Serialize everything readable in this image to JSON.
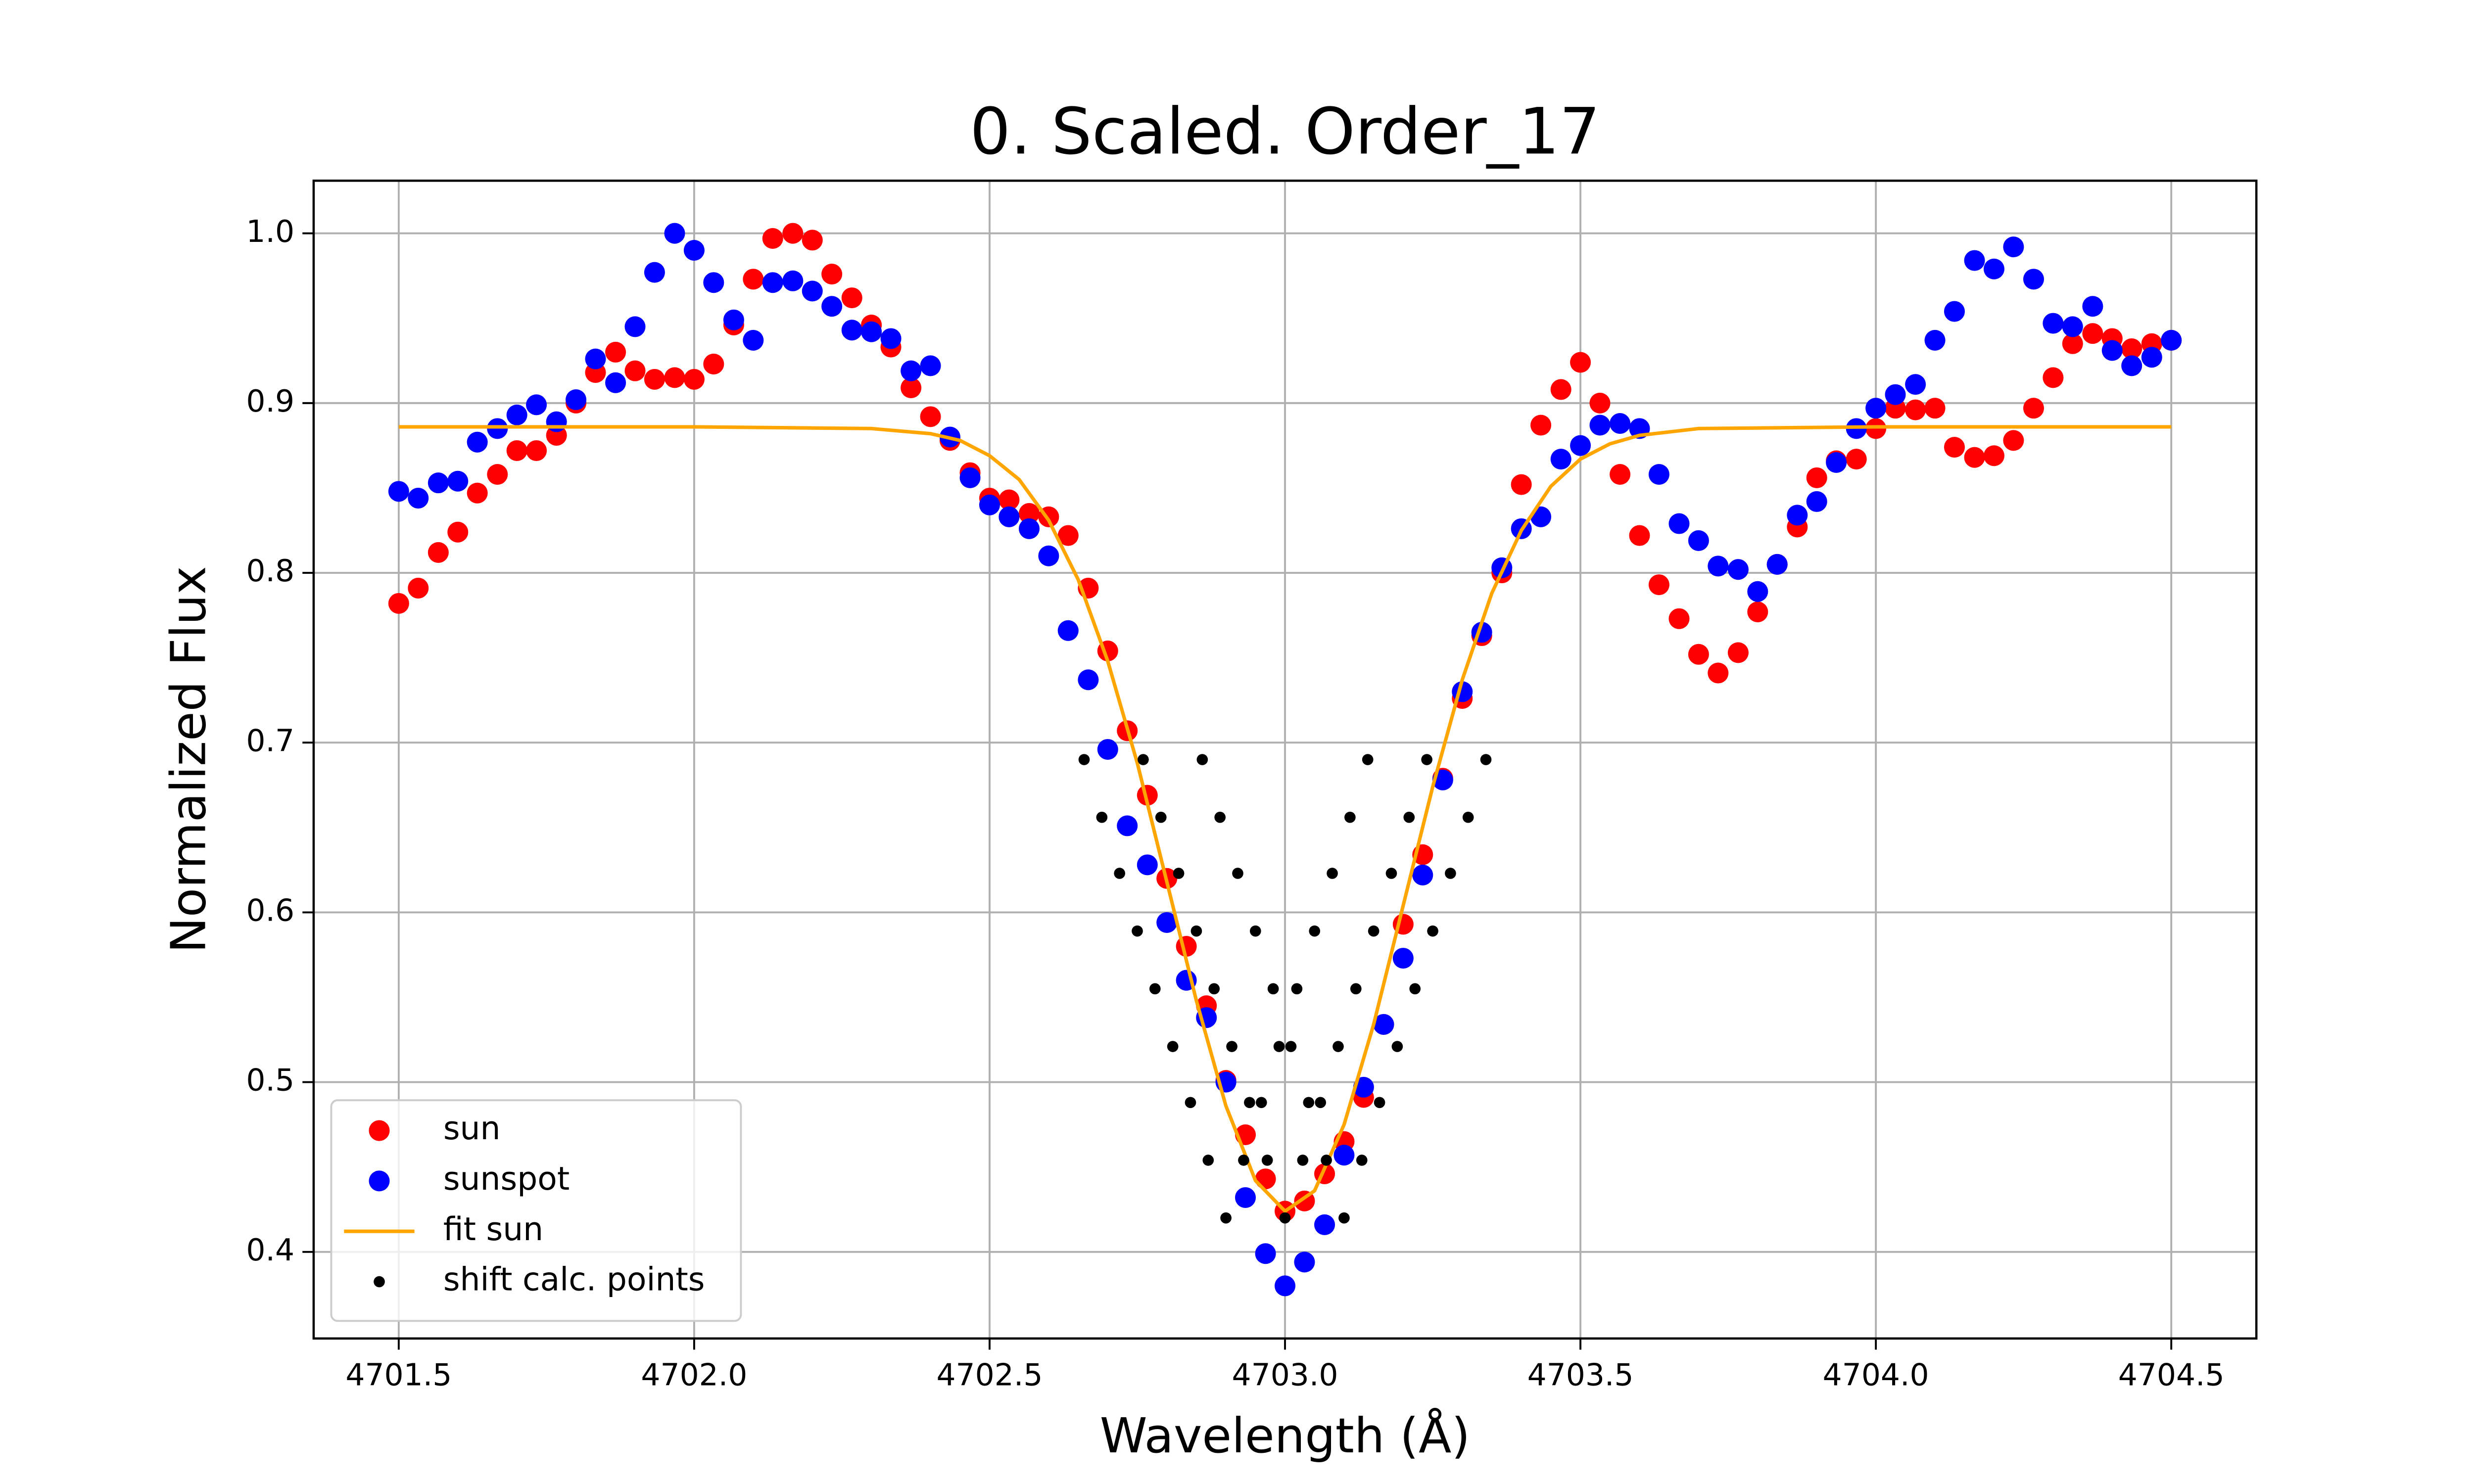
{
  "chart_data": {
    "type": "scatter",
    "title": "0. Scaled. Order_17",
    "xlabel": "Wavelength (Å)",
    "ylabel": "Normalized Flux",
    "xlim": [
      4701.356,
      4704.644
    ],
    "ylim": [
      0.349,
      1.031
    ],
    "xticks": [
      4701.5,
      {
        "value": 4702,
        "label": "4702.0"
      },
      4702.5,
      {
        "value": 4703,
        "label": "4703.0"
      },
      4703.5,
      {
        "value": 4704,
        "label": "4704.0"
      },
      4704.5
    ],
    "yticks": [
      0.4,
      0.5,
      0.6,
      0.7,
      0.8,
      0.9,
      {
        "value": 1,
        "label": "1.0"
      }
    ],
    "grid": true,
    "legend": "lower left",
    "series": [
      {
        "name": "sun",
        "type": "scatter",
        "color": "red",
        "x": [
          4701.5,
          4701.533,
          4701.567,
          4701.6,
          4701.633,
          4701.667,
          4701.7,
          4701.733,
          4701.767,
          4701.8,
          4701.833,
          4701.867,
          4701.9,
          4701.933,
          4701.967,
          4702,
          4702.033,
          4702.067,
          4702.1,
          4702.133,
          4702.167,
          4702.2,
          4702.233,
          4702.267,
          4702.3,
          4702.333,
          4702.367,
          4702.4,
          4702.433,
          4702.467,
          4702.5,
          4702.533,
          4702.567,
          4702.6,
          4702.633,
          4702.667,
          4702.7,
          4702.733,
          4702.767,
          4702.8,
          4702.833,
          4702.867,
          4702.9,
          4702.933,
          4702.967,
          4703,
          4703.033,
          4703.067,
          4703.1,
          4703.133,
          4703.167,
          4703.2,
          4703.233,
          4703.267,
          4703.3,
          4703.333,
          4703.367,
          4703.4,
          4703.433,
          4703.467,
          4703.5,
          4703.533,
          4703.567,
          4703.6,
          4703.633,
          4703.667,
          4703.7,
          4703.733,
          4703.767,
          4703.8,
          4703.833,
          4703.867,
          4703.9,
          4703.933,
          4703.967,
          4704,
          4704.033,
          4704.067,
          4704.1,
          4704.133,
          4704.167,
          4704.2,
          4704.233,
          4704.267,
          4704.3,
          4704.333,
          4704.367,
          4704.4,
          4704.433,
          4704.467,
          4704.5
        ],
        "values": [
          0.782,
          0.791,
          0.812,
          0.824,
          0.847,
          0.858,
          0.872,
          0.872,
          0.881,
          0.9,
          0.918,
          0.93,
          0.919,
          0.914,
          0.915,
          0.914,
          0.923,
          0.946,
          0.973,
          0.997,
          1.0,
          0.996,
          0.976,
          0.962,
          0.946,
          0.933,
          0.909,
          0.892,
          0.878,
          0.859,
          0.844,
          0.843,
          0.835,
          0.833,
          0.822,
          0.791,
          0.754,
          0.707,
          0.669,
          0.62,
          0.58,
          0.545,
          0.501,
          0.469,
          0.443,
          0.424,
          0.43,
          0.446,
          0.465,
          0.491,
          0.534,
          0.593,
          0.634,
          0.679,
          0.726,
          0.763,
          0.8,
          0.852,
          0.887,
          0.908,
          0.924,
          0.9,
          0.858,
          0.822,
          0.793,
          0.773,
          0.752,
          0.741,
          0.753,
          0.777,
          0.805,
          0.827,
          0.856,
          0.866,
          0.867,
          0.885,
          0.897,
          0.896,
          0.897,
          0.874,
          0.868,
          0.869,
          0.878,
          0.897,
          0.915,
          0.935,
          0.941,
          0.938,
          0.932,
          0.935,
          0.937
        ]
      },
      {
        "name": "sunspot",
        "type": "scatter",
        "color": "blue",
        "x": [
          4701.5,
          4701.533,
          4701.567,
          4701.6,
          4701.633,
          4701.667,
          4701.7,
          4701.733,
          4701.767,
          4701.8,
          4701.833,
          4701.867,
          4701.9,
          4701.933,
          4701.967,
          4702,
          4702.033,
          4702.067,
          4702.1,
          4702.133,
          4702.167,
          4702.2,
          4702.233,
          4702.267,
          4702.3,
          4702.333,
          4702.367,
          4702.4,
          4702.433,
          4702.467,
          4702.5,
          4702.533,
          4702.567,
          4702.6,
          4702.633,
          4702.667,
          4702.7,
          4702.733,
          4702.767,
          4702.8,
          4702.833,
          4702.867,
          4702.9,
          4702.933,
          4702.967,
          4703,
          4703.033,
          4703.067,
          4703.1,
          4703.133,
          4703.167,
          4703.2,
          4703.233,
          4703.267,
          4703.3,
          4703.333,
          4703.367,
          4703.4,
          4703.433,
          4703.467,
          4703.5,
          4703.533,
          4703.567,
          4703.6,
          4703.633,
          4703.667,
          4703.7,
          4703.733,
          4703.767,
          4703.8,
          4703.833,
          4703.867,
          4703.9,
          4703.933,
          4703.967,
          4704,
          4704.033,
          4704.067,
          4704.1,
          4704.133,
          4704.167,
          4704.2,
          4704.233,
          4704.267,
          4704.3,
          4704.333,
          4704.367,
          4704.4,
          4704.433,
          4704.467,
          4704.5
        ],
        "values": [
          0.848,
          0.844,
          0.853,
          0.854,
          0.877,
          0.885,
          0.893,
          0.899,
          0.889,
          0.902,
          0.926,
          0.912,
          0.945,
          0.977,
          1.0,
          0.99,
          0.971,
          0.949,
          0.937,
          0.971,
          0.972,
          0.966,
          0.957,
          0.943,
          0.942,
          0.938,
          0.919,
          0.922,
          0.88,
          0.856,
          0.84,
          0.833,
          0.826,
          0.81,
          0.766,
          0.737,
          0.696,
          0.651,
          0.628,
          0.594,
          0.56,
          0.538,
          0.5,
          0.432,
          0.399,
          0.38,
          0.394,
          0.416,
          0.457,
          0.497,
          0.534,
          0.573,
          0.622,
          0.678,
          0.73,
          0.765,
          0.803,
          0.826,
          0.833,
          0.867,
          0.875,
          0.887,
          0.888,
          0.885,
          0.858,
          0.829,
          0.819,
          0.804,
          0.802,
          0.789,
          0.805,
          0.834,
          0.842,
          0.865,
          0.885,
          0.897,
          0.905,
          0.911,
          0.937,
          0.954,
          0.984,
          0.979,
          0.992,
          0.973,
          0.947,
          0.945,
          0.957,
          0.931,
          0.922,
          0.927,
          0.937
        ]
      },
      {
        "name": "fit sun",
        "type": "line",
        "color": "orange",
        "x": [
          4701.5,
          4702,
          4702.3,
          4702.4,
          4702.45,
          4702.5,
          4702.55,
          4702.6,
          4702.65,
          4702.7,
          4702.75,
          4702.8,
          4702.85,
          4702.9,
          4702.95,
          4703,
          4703.05,
          4703.1,
          4703.15,
          4703.2,
          4703.25,
          4703.3,
          4703.35,
          4703.4,
          4703.45,
          4703.5,
          4703.55,
          4703.6,
          4703.7,
          4704,
          4704.5
        ],
        "values": [
          0.886,
          0.886,
          0.885,
          0.882,
          0.878,
          0.869,
          0.855,
          0.831,
          0.796,
          0.748,
          0.688,
          0.618,
          0.548,
          0.486,
          0.442,
          0.424,
          0.436,
          0.475,
          0.534,
          0.604,
          0.674,
          0.737,
          0.788,
          0.825,
          0.851,
          0.867,
          0.876,
          0.881,
          0.885,
          0.886,
          0.886
        ]
      },
      {
        "name": "shift calc. points",
        "type": "scatter",
        "color": "black",
        "x": [
          4702.66,
          4702.69,
          4702.72,
          4702.75,
          4702.78,
          4702.81,
          4702.84,
          4702.87,
          4702.9,
          4702.93,
          4702.96,
          4702.99,
          4703.02,
          4703.05,
          4703.08,
          4703.11,
          4703.14,
          4702.76,
          4702.79,
          4702.82,
          4702.85,
          4702.88,
          4702.91,
          4702.94,
          4702.97,
          4703,
          4703.03,
          4703.06,
          4703.09,
          4703.12,
          4703.15,
          4703.18,
          4703.21,
          4703.24,
          4702.86,
          4702.89,
          4702.92,
          4702.95,
          4702.98,
          4703.01,
          4703.04,
          4703.07,
          4703.1,
          4703.13,
          4703.16,
          4703.19,
          4703.22,
          4703.25,
          4703.28,
          4703.31,
          4703.34
        ],
        "values": [
          0.69,
          0.656,
          0.623,
          0.589,
          0.555,
          0.521,
          0.488,
          0.454,
          0.42,
          0.454,
          0.488,
          0.521,
          0.555,
          0.589,
          0.623,
          0.656,
          0.69,
          0.69,
          0.656,
          0.623,
          0.589,
          0.555,
          0.521,
          0.488,
          0.454,
          0.42,
          0.454,
          0.488,
          0.521,
          0.555,
          0.589,
          0.623,
          0.656,
          0.69,
          0.69,
          0.656,
          0.623,
          0.589,
          0.555,
          0.521,
          0.488,
          0.454,
          0.42,
          0.454,
          0.488,
          0.521,
          0.555,
          0.589,
          0.623,
          0.656,
          0.69
        ]
      }
    ]
  }
}
